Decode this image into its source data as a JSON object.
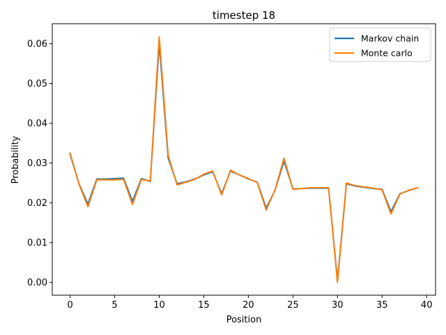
{
  "chart_data": {
    "type": "line",
    "title": "timestep 18",
    "xlabel": "Position",
    "ylabel": "Probability",
    "xlim": [
      -2,
      41
    ],
    "ylim": [
      -0.0032,
      0.065
    ],
    "xticks": [
      0,
      5,
      10,
      15,
      20,
      25,
      30,
      35,
      40
    ],
    "yticks": [
      0.0,
      0.01,
      0.02,
      0.03,
      0.04,
      0.05,
      0.06
    ],
    "ytick_labels": [
      "0.00",
      "0.01",
      "0.02",
      "0.03",
      "0.04",
      "0.05",
      "0.06"
    ],
    "grid": false,
    "legend_position": "top-right",
    "x": [
      0,
      1,
      2,
      3,
      4,
      5,
      6,
      7,
      8,
      9,
      10,
      11,
      12,
      13,
      14,
      15,
      16,
      17,
      18,
      19,
      20,
      21,
      22,
      23,
      24,
      25,
      26,
      27,
      28,
      29,
      30,
      31,
      32,
      33,
      34,
      35,
      36,
      37,
      38,
      39
    ],
    "series": [
      {
        "name": "Markov chain",
        "color": "#1f77b4",
        "values": [
          0.0322,
          0.0248,
          0.0197,
          0.026,
          0.026,
          0.0261,
          0.0262,
          0.0204,
          0.0261,
          0.0254,
          0.06,
          0.0313,
          0.0248,
          0.0253,
          0.026,
          0.027,
          0.0278,
          0.0223,
          0.028,
          0.027,
          0.026,
          0.0252,
          0.0187,
          0.0232,
          0.0305,
          0.0235,
          0.0236,
          0.0237,
          0.0237,
          0.0237,
          0.0005,
          0.0248,
          0.0242,
          0.0239,
          0.0236,
          0.0234,
          0.0178,
          0.0223,
          0.0231,
          0.0238
        ]
      },
      {
        "name": "Monte carlo",
        "color": "#ff7f0e",
        "values": [
          0.0325,
          0.0247,
          0.019,
          0.0258,
          0.0258,
          0.0258,
          0.0259,
          0.0196,
          0.0259,
          0.0255,
          0.0617,
          0.032,
          0.0245,
          0.0252,
          0.0259,
          0.0272,
          0.028,
          0.022,
          0.0282,
          0.027,
          0.0261,
          0.0251,
          0.0182,
          0.0233,
          0.0312,
          0.0234,
          0.0236,
          0.0238,
          0.0238,
          0.0238,
          0.0,
          0.025,
          0.0243,
          0.024,
          0.0237,
          0.0233,
          0.0172,
          0.0222,
          0.0232,
          0.0238
        ]
      }
    ]
  }
}
